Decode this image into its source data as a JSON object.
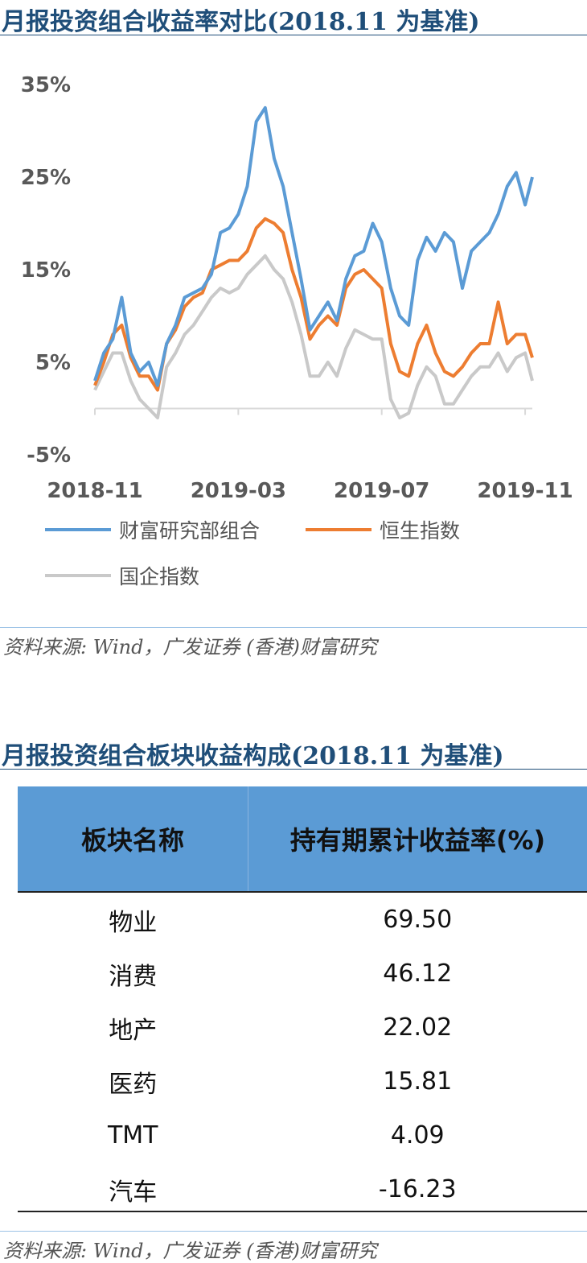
{
  "title1": "月报投资组合收益率对比(2018.11 为基准)",
  "title2": "月报投资组合板块收益构成(2018.11 为基准)",
  "source1": "资料来源: Wind，广发证券 (香港)财富研究",
  "source2": "资料来源: Wind，广发证券 (香港)财富研究",
  "chart_data": {
    "type": "line",
    "title": "月报投资组合收益率对比(2018.11 为基准)",
    "xlabel": "",
    "ylabel": "",
    "x_ticks": [
      "2018-11",
      "2019-03",
      "2019-07",
      "2019-11"
    ],
    "x_tick_positions": [
      0,
      4,
      8,
      12
    ],
    "y_ticks": [
      "35%",
      "25%",
      "15%",
      "5%",
      "-5%"
    ],
    "y_tick_values": [
      35,
      25,
      15,
      5,
      -5
    ],
    "ylim": [
      -5,
      35
    ],
    "xlim": [
      0,
      12.2
    ],
    "grid": false,
    "legend_placement": "bottom",
    "x": [
      0,
      0.25,
      0.5,
      0.75,
      1,
      1.25,
      1.5,
      1.75,
      2,
      2.25,
      2.5,
      2.75,
      3,
      3.25,
      3.5,
      3.75,
      4,
      4.25,
      4.5,
      4.75,
      5,
      5.25,
      5.5,
      5.75,
      6,
      6.25,
      6.5,
      6.75,
      7,
      7.25,
      7.5,
      7.75,
      8,
      8.25,
      8.5,
      8.75,
      9,
      9.25,
      9.5,
      9.75,
      10,
      10.25,
      10.5,
      10.75,
      11,
      11.25,
      11.5,
      11.75,
      12,
      12.2
    ],
    "series": [
      {
        "name": "财富研究部组合",
        "color": "#5b9bd5",
        "values": [
          3,
          6,
          7.5,
          12,
          6,
          4,
          5,
          2.5,
          7,
          9,
          12,
          12.5,
          13,
          14.5,
          19,
          19.5,
          21,
          24,
          31,
          32.5,
          27,
          24,
          19,
          14,
          8.5,
          10,
          11.5,
          9.5,
          14,
          16.5,
          17,
          20,
          18,
          13,
          10,
          9,
          16,
          18.5,
          17,
          19,
          18,
          13,
          17,
          18,
          19,
          21,
          24,
          25.5,
          22,
          25
        ]
      },
      {
        "name": "恒生指数",
        "color": "#ed7d31",
        "values": [
          2.5,
          5,
          8,
          9,
          5.5,
          3.5,
          3.5,
          2,
          7,
          8.5,
          11,
          12,
          12.5,
          15,
          15.5,
          16,
          16,
          17,
          19.5,
          20.5,
          20,
          19,
          15,
          12,
          7.5,
          9,
          10,
          9,
          13,
          14.5,
          15,
          14,
          13,
          7,
          4,
          3.5,
          7,
          9,
          6,
          4,
          3.5,
          4.5,
          6,
          7,
          7,
          11.5,
          7,
          8,
          8,
          5.5
        ]
      },
      {
        "name": "国企指数",
        "color": "#c9c9c9",
        "values": [
          2,
          4,
          6,
          6,
          3,
          1,
          0,
          -1,
          4.5,
          6,
          8,
          9,
          10.5,
          12,
          13,
          12.5,
          13,
          14.5,
          15.5,
          16.5,
          15,
          14,
          11.5,
          8,
          3.5,
          3.5,
          5,
          3.5,
          6.5,
          8.5,
          8,
          7.5,
          7.5,
          1,
          -1,
          -0.5,
          2.5,
          4.5,
          3.5,
          0.5,
          0.5,
          2,
          3.5,
          4.5,
          4.5,
          6,
          4,
          5.5,
          6,
          3
        ]
      }
    ]
  },
  "legend": [
    {
      "label": "财富研究部组合",
      "color": "#5b9bd5"
    },
    {
      "label": "恒生指数",
      "color": "#ed7d31"
    },
    {
      "label": "国企指数",
      "color": "#c9c9c9"
    }
  ],
  "table": {
    "headers": [
      "板块名称",
      "持有期累计收益率(%)"
    ],
    "rows": [
      [
        "物业",
        "69.50"
      ],
      [
        "消费",
        "46.12"
      ],
      [
        "地产",
        "22.02"
      ],
      [
        "医药",
        "15.81"
      ],
      [
        "TMT",
        "4.09"
      ],
      [
        "汽车",
        "-16.23"
      ]
    ]
  }
}
